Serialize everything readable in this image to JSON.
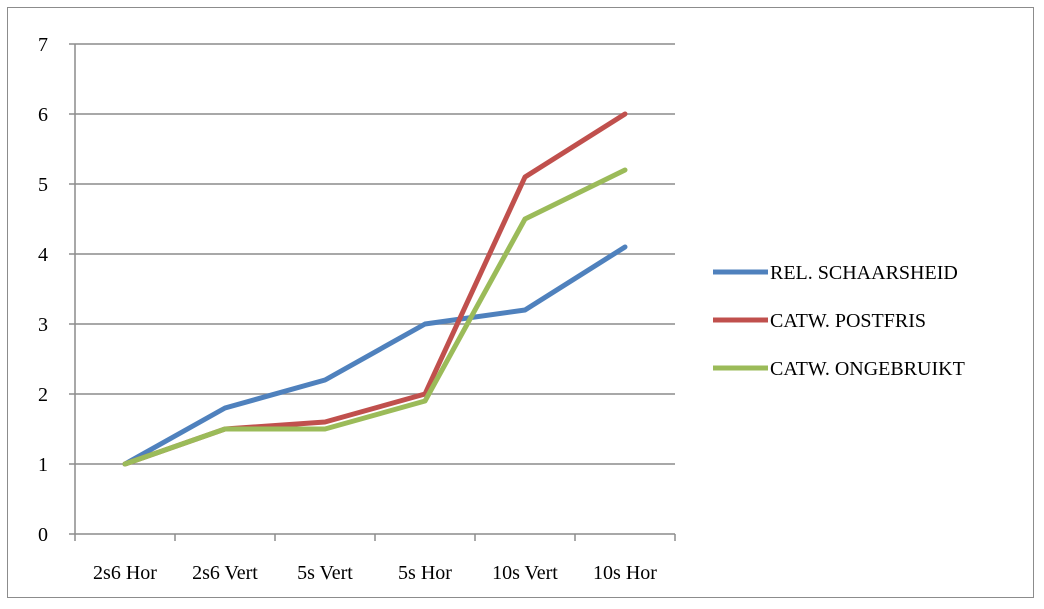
{
  "chart_data": {
    "type": "line",
    "title": "",
    "xlabel": "",
    "ylabel": "",
    "categories": [
      "2s6 Hor",
      "2s6 Vert",
      "5s Vert",
      "5s Hor",
      "10s Vert",
      "10s Hor"
    ],
    "ylim": [
      0,
      7
    ],
    "yticks": [
      0,
      1,
      2,
      3,
      4,
      5,
      6,
      7
    ],
    "grid": true,
    "legend_position": "right",
    "series": [
      {
        "name": "REL. SCHAARSHEID",
        "color": "#4f81bd",
        "values": [
          1,
          1.8,
          2.2,
          3,
          3.2,
          4.1
        ]
      },
      {
        "name": "CATW. POSTFRIS",
        "color": "#c0504d",
        "values": [
          1,
          1.5,
          1.6,
          2,
          5.1,
          6
        ]
      },
      {
        "name": "CATW. ONGEBRUIKT",
        "color": "#9bbb59",
        "values": [
          1,
          1.5,
          1.5,
          1.9,
          4.5,
          5.2
        ]
      }
    ]
  }
}
